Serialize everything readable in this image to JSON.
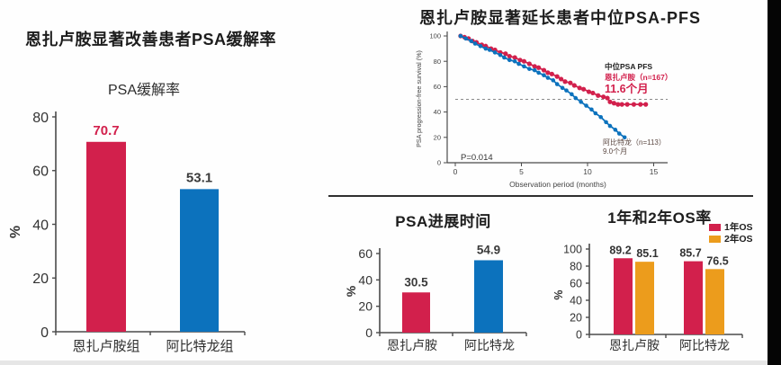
{
  "slide": {
    "background": "#fefefe",
    "accent_red": "#d2204c",
    "accent_blue": "#0c72bd",
    "accent_orange": "#ec9c1c",
    "axis_color": "#4a4a4a",
    "text_color": "#333333"
  },
  "chart_data": [
    {
      "id": "psa-response",
      "type": "bar",
      "title": "恩扎卢胺显著改善患者PSA缓解率",
      "subtitle": "PSA缓解率",
      "categories": [
        "恩扎卢胺组",
        "阿比特龙组"
      ],
      "values": [
        70.7,
        53.1
      ],
      "bar_colors": [
        "#d2204c",
        "#0c72bd"
      ],
      "value_label_colors": [
        "#d2204c",
        "#3a3a3a"
      ],
      "ylabel": "%",
      "ylim": [
        0,
        80
      ],
      "yticks": [
        0,
        20,
        40,
        60,
        80
      ],
      "grid": false
    },
    {
      "id": "psa-pfs-km",
      "type": "line",
      "title": "恩扎卢胺显著延长患者中位PSA-PFS",
      "xlabel": "Observation period (months)",
      "ylabel": "PSA progression-free survival (%)",
      "xlim": [
        0,
        16
      ],
      "xticks": [
        0,
        5,
        10,
        15
      ],
      "ylim": [
        0,
        100
      ],
      "yticks": [
        0,
        20,
        40,
        60,
        80,
        100
      ],
      "median_reference_pct": 50,
      "p_value": "P=0.014",
      "legend_header": "中位PSA PFS",
      "series": [
        {
          "name": "恩扎卢胺（n=167）",
          "median_label": "11.6个月",
          "color": "#d2204c",
          "points": [
            [
              0.4,
              100
            ],
            [
              0.7,
              99
            ],
            [
              1.0,
              98
            ],
            [
              1.3,
              96
            ],
            [
              1.6,
              95
            ],
            [
              2.0,
              93
            ],
            [
              2.3,
              92
            ],
            [
              2.7,
              90
            ],
            [
              3.0,
              89
            ],
            [
              3.4,
              87
            ],
            [
              3.8,
              86
            ],
            [
              4.1,
              84
            ],
            [
              4.5,
              83
            ],
            [
              4.9,
              81
            ],
            [
              5.2,
              80
            ],
            [
              5.6,
              78
            ],
            [
              6.0,
              76
            ],
            [
              6.3,
              75
            ],
            [
              6.7,
              73
            ],
            [
              7.0,
              71
            ],
            [
              7.3,
              70
            ],
            [
              7.7,
              68
            ],
            [
              8.0,
              66
            ],
            [
              8.3,
              64
            ],
            [
              8.7,
              63
            ],
            [
              9.0,
              61
            ],
            [
              9.4,
              59
            ],
            [
              9.7,
              58
            ],
            [
              10.1,
              56
            ],
            [
              10.4,
              55
            ],
            [
              10.8,
              53
            ],
            [
              11.2,
              52
            ],
            [
              11.5,
              51
            ],
            [
              11.7,
              48
            ],
            [
              12.0,
              47
            ],
            [
              12.3,
              46
            ],
            [
              12.6,
              46
            ],
            [
              13.0,
              46
            ],
            [
              13.5,
              46
            ],
            [
              14.0,
              46
            ],
            [
              14.4,
              46
            ]
          ]
        },
        {
          "name": "阿比特龙（n=113）",
          "median_label": "9.0个月",
          "color": "#0c72bd",
          "points": [
            [
              0.4,
              100
            ],
            [
              0.8,
              98
            ],
            [
              1.2,
              96
            ],
            [
              1.5,
              94
            ],
            [
              1.9,
              92
            ],
            [
              2.3,
              90
            ],
            [
              2.6,
              89
            ],
            [
              3.0,
              87
            ],
            [
              3.4,
              85
            ],
            [
              3.7,
              83
            ],
            [
              4.1,
              81
            ],
            [
              4.5,
              80
            ],
            [
              4.8,
              78
            ],
            [
              5.2,
              76
            ],
            [
              5.6,
              74
            ],
            [
              6.0,
              73
            ],
            [
              6.3,
              71
            ],
            [
              6.7,
              69
            ],
            [
              7.0,
              67
            ],
            [
              7.4,
              65
            ],
            [
              7.7,
              62
            ],
            [
              8.1,
              59
            ],
            [
              8.4,
              57
            ],
            [
              8.8,
              54
            ],
            [
              9.1,
              51
            ],
            [
              9.5,
              48
            ],
            [
              9.9,
              45
            ],
            [
              10.3,
              42
            ],
            [
              10.6,
              39
            ],
            [
              11.0,
              36
            ],
            [
              11.4,
              32
            ],
            [
              11.7,
              29
            ],
            [
              12.1,
              26
            ],
            [
              12.4,
              23
            ],
            [
              12.8,
              20
            ]
          ]
        }
      ]
    },
    {
      "id": "psa-progression",
      "type": "bar",
      "title": "PSA进展时间",
      "categories": [
        "恩扎卢胺",
        "阿比特龙"
      ],
      "values": [
        30.5,
        54.9
      ],
      "bar_colors": [
        "#d2204c",
        "#0c72bd"
      ],
      "value_label_colors": [
        "#3a3a3a",
        "#3a3a3a"
      ],
      "ylabel": "%",
      "ylim": [
        0,
        60
      ],
      "yticks": [
        0,
        20,
        40,
        60
      ],
      "grid": false
    },
    {
      "id": "os-rates",
      "type": "bar",
      "title": "1年和2年OS率",
      "categories": [
        "恩扎卢胺",
        "阿比特龙"
      ],
      "series": [
        {
          "name": "1年OS",
          "color": "#d2204c",
          "values": [
            89.2,
            85.7
          ]
        },
        {
          "name": "2年OS",
          "color": "#ec9c1c",
          "values": [
            85.1,
            76.5
          ]
        }
      ],
      "ylabel": "%",
      "ylim": [
        0,
        100
      ],
      "yticks": [
        0,
        20,
        40,
        60,
        80,
        100
      ],
      "legend_position": "top-right",
      "grid": false
    }
  ]
}
